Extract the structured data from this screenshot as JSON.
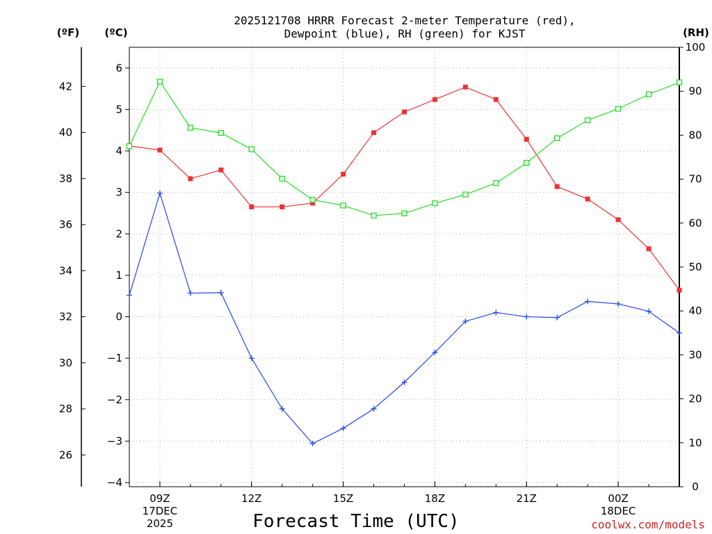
{
  "chart_data": {
    "type": "line",
    "title": "2025121708 HRRR Forecast 2-meter Temperature (red),",
    "title_line2": "Dewpoint (blue), RH (green) for KJST",
    "xlabel": "Forecast Time (UTC)",
    "credit": "coolwx.com/models",
    "left_axis_label": "(ºC)",
    "far_left_axis_label": "(ºF)",
    "right_axis_label": "(RH)",
    "ylim_c": [
      -4.1,
      6.5
    ],
    "ylim_rh": [
      0,
      100
    ],
    "x_range_hours": [
      8,
      26
    ],
    "celsius_ticks": [
      "6",
      "5",
      "4",
      "3",
      "2",
      "1",
      "0",
      "−1",
      "−2",
      "−3",
      "−4"
    ],
    "fahrenheit_ticks": [
      "42",
      "40",
      "38",
      "36",
      "34",
      "32",
      "30",
      "28",
      "26"
    ],
    "rh_ticks": [
      "100",
      "90",
      "80",
      "70",
      "60",
      "50",
      "40",
      "30",
      "20",
      "10",
      "0"
    ],
    "x_ticks": [
      {
        "hour": 9,
        "lines": [
          "09Z",
          "17DEC",
          "2025"
        ]
      },
      {
        "hour": 12,
        "lines": [
          "12Z"
        ]
      },
      {
        "hour": 15,
        "lines": [
          "15Z"
        ]
      },
      {
        "hour": 18,
        "lines": [
          "18Z"
        ]
      },
      {
        "hour": 21,
        "lines": [
          "21Z"
        ]
      },
      {
        "hour": 24,
        "lines": [
          "00Z",
          "18DEC"
        ]
      }
    ],
    "x": [
      8,
      9,
      10,
      11,
      12,
      13,
      14,
      15,
      16,
      17,
      18,
      19,
      20,
      21,
      22,
      23,
      24,
      25,
      26
    ],
    "series": [
      {
        "name": "Temperature (°C)",
        "color": "#ee3333",
        "marker": "filled-square",
        "axis": "celsius",
        "values": [
          4.12,
          4.02,
          3.33,
          3.54,
          2.65,
          2.65,
          2.74,
          3.44,
          4.44,
          4.94,
          5.24,
          5.54,
          5.24,
          4.28,
          3.14,
          2.84,
          2.34,
          1.64,
          0.64
        ]
      },
      {
        "name": "Dewpoint (°C)",
        "color": "#2244ee",
        "marker": "plus",
        "axis": "celsius",
        "values": [
          0.52,
          2.98,
          0.57,
          0.58,
          -1.0,
          -2.22,
          -3.06,
          -2.69,
          -2.22,
          -1.58,
          -0.86,
          -0.11,
          0.1,
          0.0,
          -0.02,
          0.37,
          0.31,
          0.13,
          -0.39
        ]
      },
      {
        "name": "RH (%)",
        "color": "#22dd22",
        "marker": "open-square",
        "axis": "rh",
        "values": [
          77.5,
          92.2,
          81.7,
          80.5,
          76.8,
          70.1,
          65.3,
          64.0,
          61.7,
          62.2,
          64.5,
          66.5,
          69.1,
          73.7,
          79.3,
          83.4,
          86.0,
          89.3,
          92.0
        ]
      }
    ]
  }
}
